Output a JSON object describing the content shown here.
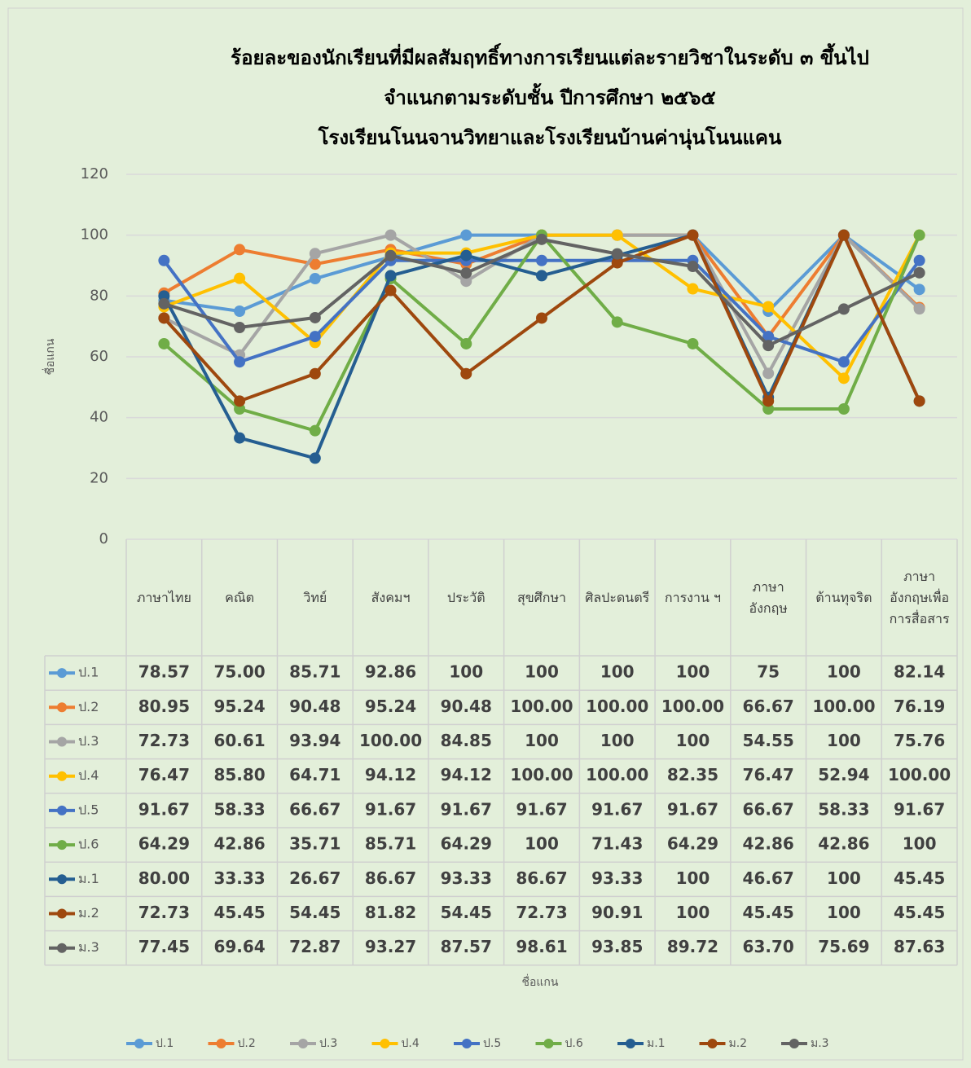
{
  "chart_data": {
    "type": "line",
    "title": [
      "ร้อยละของนักเรียนที่มีผลสัมฤทธิ์ทางการเรียนแต่ละรายวิชาในระดับ ๓ ขึ้นไป",
      "จำแนกตามระดับชั้น  ปีการศึกษา ๒๕๖๕",
      "โรงเรียนโนนจานวิทยาและโรงเรียนบ้านค่านุ่นโนนแคน"
    ],
    "y_label": "ชื่อแกน",
    "x_label": "ชื่อแกน",
    "categories": [
      "ภาษาไทย",
      "คณิต",
      "วิทย์",
      "สังคมฯ",
      "ประวัติ",
      "สุขศึกษา",
      "ศิลปะดนตรี",
      "การงาน ฯ",
      "ภาษาอังกฤษ",
      "ต้านทุจริต",
      "ภาษาอังกฤษเพื่อการสื่อสาร"
    ],
    "ylim": [
      0,
      120
    ],
    "yticks": [
      0,
      20,
      40,
      60,
      80,
      100,
      120
    ],
    "grid": true,
    "legend": "bottom",
    "series": [
      {
        "name": "ป.1",
        "color": "#5b9bd5",
        "values": [
          78.57,
          75,
          85.71,
          92.86,
          100,
          100,
          100,
          100,
          75,
          100,
          82.14
        ],
        "value_labels": [
          "78.57",
          "75.00",
          "85.71",
          "92.86",
          "100",
          "100",
          "100",
          "100",
          "75",
          "100",
          "82.14"
        ]
      },
      {
        "name": "ป.2",
        "color": "#ed7d31",
        "values": [
          80.95,
          95.24,
          90.48,
          95.24,
          90.48,
          100,
          100,
          100,
          66.67,
          100,
          76.19
        ],
        "value_labels": [
          "80.95",
          "95.24",
          "90.48",
          "95.24",
          "90.48",
          "100.00",
          "100.00",
          "100.00",
          "66.67",
          "100.00",
          "76.19"
        ]
      },
      {
        "name": "ป.3",
        "color": "#a5a5a5",
        "values": [
          72.73,
          60.61,
          93.94,
          100,
          84.85,
          100,
          100,
          100,
          54.55,
          100,
          75.76
        ],
        "value_labels": [
          "72.73",
          "60.61",
          "93.94",
          "100.00",
          "84.85",
          "100",
          "100",
          "100",
          "54.55",
          "100",
          "75.76"
        ]
      },
      {
        "name": "ป.4",
        "color": "#ffc000",
        "values": [
          76.47,
          85.8,
          64.71,
          94.12,
          94.12,
          100,
          100,
          82.35,
          76.47,
          52.94,
          100
        ],
        "value_labels": [
          "76.47",
          "85.80",
          "64.71",
          "94.12",
          "94.12",
          "100.00",
          "100.00",
          "82.35",
          "76.47",
          "52.94",
          "100.00"
        ]
      },
      {
        "name": "ป.5",
        "color": "#4472c4",
        "values": [
          91.67,
          58.33,
          66.67,
          91.67,
          91.67,
          91.67,
          91.67,
          91.67,
          66.67,
          58.33,
          91.67
        ],
        "value_labels": [
          "91.67",
          "58.33",
          "66.67",
          "91.67",
          "91.67",
          "91.67",
          "91.67",
          "91.67",
          "66.67",
          "58.33",
          "91.67"
        ]
      },
      {
        "name": "ป.6",
        "color": "#70ad47",
        "values": [
          64.29,
          42.86,
          35.71,
          85.71,
          64.29,
          100,
          71.43,
          64.29,
          42.86,
          42.86,
          100
        ],
        "value_labels": [
          "64.29",
          "42.86",
          "35.71",
          "85.71",
          "64.29",
          "100",
          "71.43",
          "64.29",
          "42.86",
          "42.86",
          "100"
        ]
      },
      {
        "name": "ม.1",
        "color": "#255e91",
        "values": [
          80,
          33.33,
          26.67,
          86.67,
          93.33,
          86.67,
          93.33,
          100,
          46.67,
          100,
          45.45
        ],
        "value_labels": [
          "80.00",
          "33.33",
          "26.67",
          "86.67",
          "93.33",
          "86.67",
          "93.33",
          "100",
          "46.67",
          "100",
          "45.45"
        ]
      },
      {
        "name": "ม.2",
        "color": "#9e480e",
        "values": [
          72.73,
          45.45,
          54.45,
          81.82,
          54.45,
          72.73,
          90.91,
          100,
          45.45,
          100,
          45.45
        ],
        "value_labels": [
          "72.73",
          "45.45",
          "54.45",
          "81.82",
          "54.45",
          "72.73",
          "90.91",
          "100",
          "45.45",
          "100",
          "45.45"
        ]
      },
      {
        "name": "ม.3",
        "color": "#636363",
        "values": [
          77.45,
          69.64,
          72.87,
          93.27,
          87.57,
          98.61,
          93.85,
          89.72,
          63.7,
          75.69,
          87.63
        ],
        "value_labels": [
          "77.45",
          "69.64",
          "72.87",
          "93.27",
          "87.57",
          "98.61",
          "93.85",
          "89.72",
          "63.70",
          "75.69",
          "87.63"
        ]
      }
    ]
  }
}
